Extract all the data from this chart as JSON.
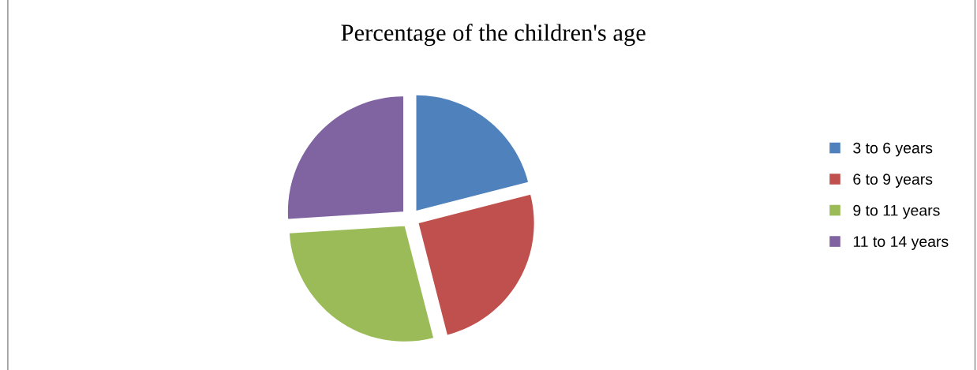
{
  "chart_data": {
    "type": "pie",
    "title": "Percentage of the children's age",
    "categories": [
      "3 to 6 years",
      "6 to 9 years",
      "9 to 11 years",
      "11 to 14 years"
    ],
    "values": [
      21,
      25,
      28,
      26
    ],
    "colors": [
      "#4f81bd",
      "#c0504d",
      "#9bbb59",
      "#8064a2"
    ],
    "legend": "right"
  }
}
